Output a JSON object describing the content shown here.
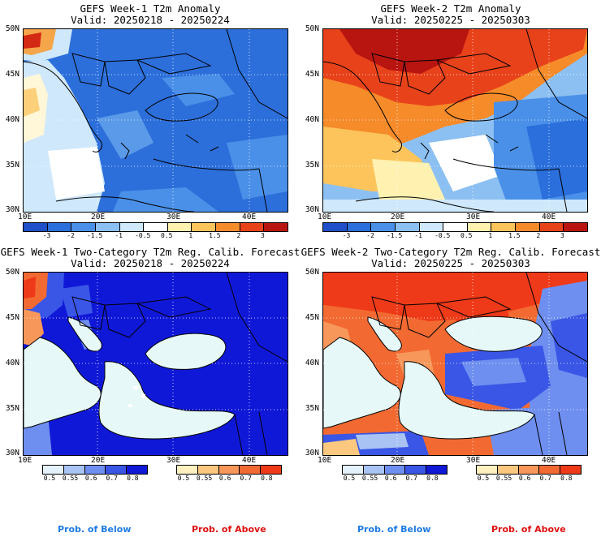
{
  "panels": [
    {
      "title": "GEFS Week-1 T2m Anomaly",
      "valid": "Valid: 20250218 - 20250224"
    },
    {
      "title": "GEFS Week-2 T2m Anomaly",
      "valid": "Valid: 20250225 - 20250303"
    },
    {
      "title": "GEFS Week-1 Two-Category T2m Reg. Calib. Forecast",
      "valid": "Valid: 20250218 - 20250224"
    },
    {
      "title": "GEFS Week-2 Two-Category T2m Reg. Calib. Forecast",
      "valid": "Valid: 20250225 - 20250303"
    }
  ],
  "lat_labels": [
    "50N",
    "45N",
    "40N",
    "35N",
    "30N"
  ],
  "lon_labels": [
    "10E",
    "20E",
    "30E",
    "40E"
  ],
  "anomaly_scale": {
    "ticks": [
      "-3",
      "-2",
      "-1.5",
      "-1",
      "-0.5",
      "0.5",
      "1",
      "1.5",
      "2",
      "3"
    ],
    "colors": [
      "#1f4fc9",
      "#2a6fdc",
      "#4a90e8",
      "#8cc0f2",
      "#cfe8fb",
      "#ffffff",
      "#fff1b0",
      "#fcc45a",
      "#f68b2a",
      "#e8421a",
      "#b81510"
    ]
  },
  "prob_scale": {
    "ticks": [
      "0.5",
      "0.55",
      "0.6",
      "0.7",
      "0.8"
    ],
    "below_colors": [
      "#e6f2fb",
      "#a9c4f4",
      "#6f8ff0",
      "#3a56e6",
      "#1018d8"
    ],
    "above_colors": [
      "#fff0c0",
      "#fcc880",
      "#f8975a",
      "#f26a32",
      "#ee3a18"
    ]
  },
  "legend": {
    "below": "Prob. of Below",
    "above": "Prob. of Above",
    "below_color": "#1e7be6",
    "above_color": "#e01010"
  },
  "colors": {
    "sea": "#e6f8f8"
  }
}
